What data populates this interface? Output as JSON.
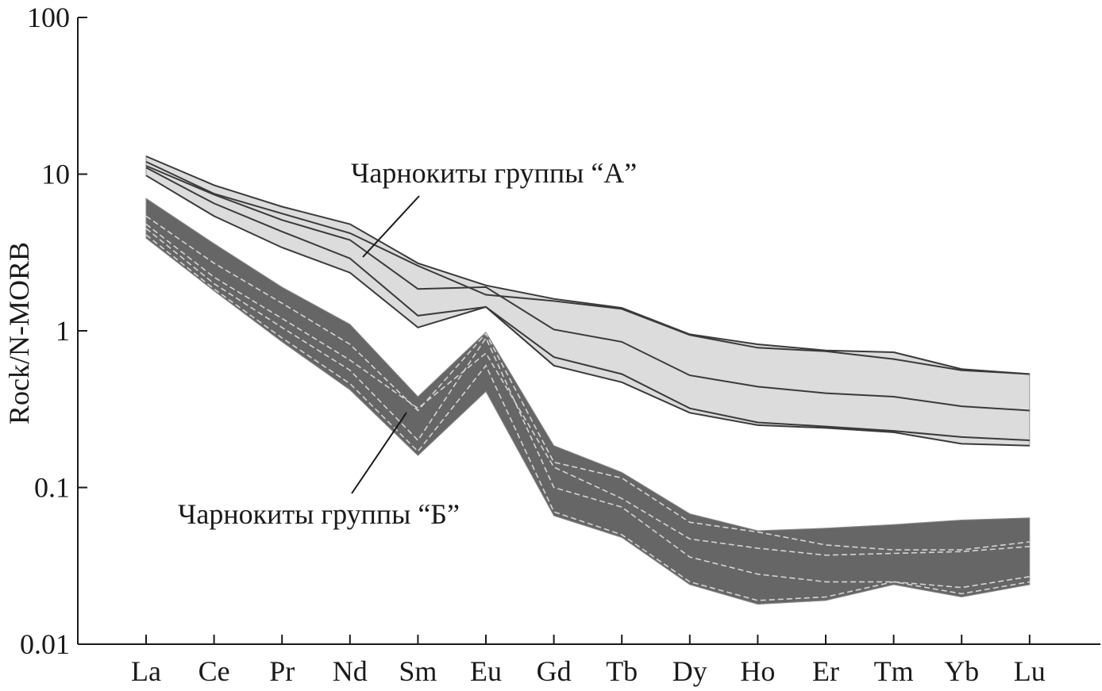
{
  "chart_data": {
    "type": "line",
    "ylabel": "Rock/N-MORB",
    "yscale": "log",
    "ylim": [
      0.01,
      100
    ],
    "yticks": [
      {
        "value": 100,
        "label": "100"
      },
      {
        "value": 10,
        "label": "10"
      },
      {
        "value": 1,
        "label": "1"
      },
      {
        "value": 0.1,
        "label": "0.1"
      },
      {
        "value": 0.01,
        "label": "0.01"
      }
    ],
    "categories": [
      "La",
      "Ce",
      "Pr",
      "Nd",
      "Sm",
      "Eu",
      "Gd",
      "Tb",
      "Dy",
      "Ho",
      "Er",
      "Tm",
      "Yb",
      "Lu"
    ],
    "grid": false,
    "groups": [
      {
        "id": "A",
        "label": "Чарнокиты группы “А”",
        "fill_color": "#dcdcdc",
        "line_color": "#3a3a3a",
        "line_style": "solid",
        "band_upper": [
          13.0,
          8.5,
          6.2,
          4.8,
          2.7,
          1.95,
          1.6,
          1.4,
          0.95,
          0.82,
          0.75,
          0.73,
          0.57,
          0.53
        ],
        "band_lower": [
          9.8,
          5.4,
          3.4,
          2.35,
          1.05,
          1.42,
          0.6,
          0.47,
          0.3,
          0.25,
          0.24,
          0.225,
          0.19,
          0.185
        ],
        "series": [
          [
            13.0,
            8.5,
            6.2,
            4.8,
            2.7,
            1.95,
            1.6,
            1.4,
            0.95,
            0.82,
            0.75,
            0.73,
            0.57,
            0.53
          ],
          [
            12.0,
            7.5,
            5.6,
            4.2,
            2.6,
            1.7,
            1.55,
            1.38,
            0.94,
            0.78,
            0.74,
            0.66,
            0.56,
            0.53
          ],
          [
            11.3,
            7.4,
            5.1,
            3.8,
            1.85,
            1.9,
            1.02,
            0.85,
            0.52,
            0.44,
            0.4,
            0.38,
            0.33,
            0.31
          ],
          [
            11.0,
            6.5,
            4.3,
            2.9,
            1.25,
            1.42,
            0.68,
            0.53,
            0.32,
            0.26,
            0.245,
            0.23,
            0.21,
            0.2
          ],
          [
            9.8,
            5.4,
            3.4,
            2.35,
            1.05,
            1.42,
            0.6,
            0.47,
            0.3,
            0.25,
            0.24,
            0.225,
            0.19,
            0.185
          ]
        ]
      },
      {
        "id": "B",
        "label": "Чарнокиты группы “Б”",
        "fill_color": "#666666",
        "line_color": "#d4d4d4",
        "line_style": "dashed",
        "band_upper": [
          7.0,
          3.6,
          1.9,
          1.1,
          0.38,
          0.98,
          0.185,
          0.125,
          0.068,
          0.053,
          0.055,
          0.058,
          0.062,
          0.064
        ],
        "band_lower": [
          3.9,
          1.8,
          0.85,
          0.42,
          0.16,
          0.41,
          0.066,
          0.048,
          0.024,
          0.018,
          0.019,
          0.024,
          0.02,
          0.024
        ],
        "series": [
          [
            5.4,
            2.7,
            1.5,
            0.82,
            0.31,
            0.96,
            0.145,
            0.115,
            0.06,
            0.052,
            0.043,
            0.04,
            0.04,
            0.045
          ],
          [
            4.8,
            2.2,
            1.2,
            0.65,
            0.32,
            0.72,
            0.135,
            0.085,
            0.047,
            0.041,
            0.037,
            0.038,
            0.039,
            0.042
          ],
          [
            4.5,
            2.0,
            1.05,
            0.56,
            0.2,
            0.9,
            0.1,
            0.075,
            0.036,
            0.028,
            0.025,
            0.025,
            0.023,
            0.027
          ],
          [
            4.1,
            1.85,
            0.9,
            0.46,
            0.17,
            0.6,
            0.07,
            0.05,
            0.025,
            0.019,
            0.02,
            0.025,
            0.021,
            0.025
          ]
        ]
      }
    ]
  }
}
